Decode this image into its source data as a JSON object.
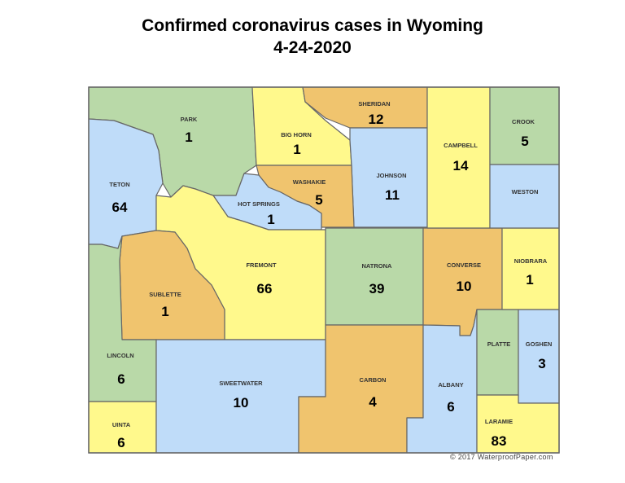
{
  "title": "Confirmed coronavirus cases in Wyoming",
  "date": "4-24-2020",
  "credit": "© 2017 WaterproofPaper.com",
  "colors": {
    "green": "#b9d9a8",
    "blue": "#bfdcf9",
    "yellow": "#fff98c",
    "orange": "#f0c46e",
    "border": "#666666"
  },
  "counties": [
    {
      "id": "park",
      "name": "PARK",
      "cases": "1",
      "color": "green"
    },
    {
      "id": "teton",
      "name": "TETON",
      "cases": "64",
      "color": "blue"
    },
    {
      "id": "bighorn",
      "name": "BIG HORN",
      "cases": "1",
      "color": "yellow"
    },
    {
      "id": "sheridan",
      "name": "SHERIDAN",
      "cases": "12",
      "color": "orange"
    },
    {
      "id": "johnson",
      "name": "JOHNSON",
      "cases": "11",
      "color": "blue"
    },
    {
      "id": "washakie",
      "name": "WASHAKIE",
      "cases": "5",
      "color": "orange"
    },
    {
      "id": "hotsprings",
      "name": "HOT SPRINGS",
      "cases": "1",
      "color": "blue"
    },
    {
      "id": "fremont",
      "name": "FREMONT",
      "cases": "66",
      "color": "yellow"
    },
    {
      "id": "sublette",
      "name": "SUBLETTE",
      "cases": "1",
      "color": "orange"
    },
    {
      "id": "lincoln",
      "name": "LINCOLN",
      "cases": "6",
      "color": "green"
    },
    {
      "id": "uinta",
      "name": "UINTA",
      "cases": "6",
      "color": "yellow"
    },
    {
      "id": "sweetwater",
      "name": "SWEETWATER",
      "cases": "10",
      "color": "blue"
    },
    {
      "id": "natrona",
      "name": "NATRONA",
      "cases": "39",
      "color": "green"
    },
    {
      "id": "carbon",
      "name": "CARBON",
      "cases": "4",
      "color": "orange"
    },
    {
      "id": "converse",
      "name": "CONVERSE",
      "cases": "10",
      "color": "orange"
    },
    {
      "id": "albany",
      "name": "ALBANY",
      "cases": "6",
      "color": "blue"
    },
    {
      "id": "platte",
      "name": "PLATTE",
      "cases": "",
      "color": "green"
    },
    {
      "id": "goshen",
      "name": "GOSHEN",
      "cases": "3",
      "color": "blue"
    },
    {
      "id": "laramie",
      "name": "LARAMIE",
      "cases": "83",
      "color": "yellow"
    },
    {
      "id": "niobrara",
      "name": "NIOBRARA",
      "cases": "1",
      "color": "yellow"
    },
    {
      "id": "campbell",
      "name": "CAMPBELL",
      "cases": "14",
      "color": "yellow"
    },
    {
      "id": "crook",
      "name": "CROOK",
      "cases": "5",
      "color": "green"
    },
    {
      "id": "weston",
      "name": "WESTON",
      "cases": "",
      "color": "blue"
    }
  ]
}
